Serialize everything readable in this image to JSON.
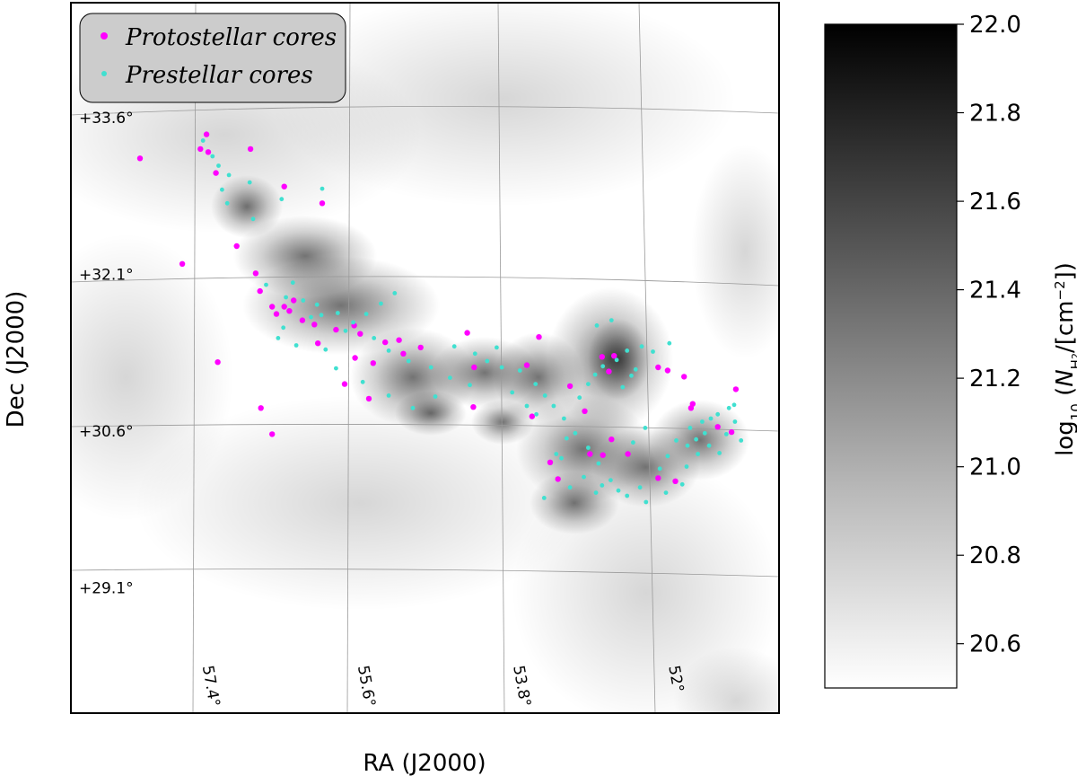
{
  "chart_data": {
    "type": "scatter",
    "title": "",
    "xlabel": "RA (J2000)",
    "ylabel": "Dec (J2000)",
    "x_unit": "deg",
    "y_unit": "deg",
    "xlim": [
      50.6,
      58.8
    ],
    "ylim": [
      27.9,
      34.7
    ],
    "ra_ticks": [
      57.4,
      55.6,
      53.8,
      52
    ],
    "ra_tick_labels": [
      "57.4°",
      "55.6°",
      "53.8°",
      "52°"
    ],
    "dec_ticks": [
      33.6,
      32.1,
      30.6,
      29.1
    ],
    "dec_tick_labels": [
      "+33.6°",
      "+32.1°",
      "+30.6°",
      "+29.1°"
    ],
    "grid": true,
    "legend_position": "top-left",
    "background": "log10 N(H2) column density map, grayscale",
    "colorbar": {
      "label": "log10 (N_H2/[cm^-2])",
      "label_base": "log",
      "label_sub": "10",
      "label_open": " (",
      "label_N": "N",
      "label_H": "H",
      "label_2": "2",
      "label_mid": "/[cm",
      "label_exp": "−2",
      "label_close": "])",
      "min": 20.5,
      "max": 22.0,
      "ticks": [
        "22.0",
        "21.8",
        "21.6",
        "21.4",
        "21.2",
        "21.0",
        "20.8",
        "20.6"
      ],
      "tick_values": [
        22.0,
        21.8,
        21.6,
        21.4,
        21.2,
        21.0,
        20.8,
        20.6
      ],
      "colormap": "gray_r"
    },
    "series": [
      {
        "name": "Protostellar cores",
        "color": "#ff00ff",
        "points": [
          [
            58.0,
            33.21
          ],
          [
            57.3,
            33.3
          ],
          [
            57.23,
            33.44
          ],
          [
            57.21,
            33.27
          ],
          [
            57.12,
            33.07
          ],
          [
            56.72,
            33.3
          ],
          [
            56.33,
            32.94
          ],
          [
            55.89,
            32.78
          ],
          [
            57.51,
            32.2
          ],
          [
            56.88,
            32.37
          ],
          [
            56.66,
            32.11
          ],
          [
            56.61,
            31.94
          ],
          [
            56.47,
            31.79
          ],
          [
            56.42,
            31.72
          ],
          [
            56.33,
            31.79
          ],
          [
            56.27,
            31.75
          ],
          [
            56.22,
            31.85
          ],
          [
            56.12,
            31.66
          ],
          [
            55.98,
            31.62
          ],
          [
            55.73,
            31.57
          ],
          [
            55.52,
            31.61
          ],
          [
            55.45,
            31.53
          ],
          [
            55.0,
            31.47
          ],
          [
            55.16,
            31.45
          ],
          [
            54.75,
            31.4
          ],
          [
            55.94,
            31.44
          ],
          [
            55.51,
            31.3
          ],
          [
            55.3,
            31.25
          ],
          [
            57.1,
            31.26
          ],
          [
            55.35,
            30.91
          ],
          [
            55.63,
            31.05
          ],
          [
            56.6,
            30.82
          ],
          [
            56.47,
            30.57
          ],
          [
            54.95,
            31.34
          ],
          [
            54.13,
            31.21
          ],
          [
            54.14,
            30.83
          ],
          [
            53.38,
            31.5
          ],
          [
            53.02,
            31.03
          ],
          [
            52.85,
            30.79
          ],
          [
            52.54,
            30.52
          ],
          [
            52.64,
            30.37
          ],
          [
            52.35,
            30.38
          ],
          [
            52.0,
            30.15
          ],
          [
            51.6,
            30.86
          ],
          [
            51.31,
            30.64
          ],
          [
            51.15,
            30.59
          ],
          [
            51.1,
            31.0
          ],
          [
            53.46,
            30.74
          ],
          [
            52.79,
            30.38
          ],
          [
            53.25,
            30.3
          ],
          [
            53.16,
            30.14
          ],
          [
            51.7,
            31.12
          ],
          [
            51.62,
            30.82
          ],
          [
            51.8,
            30.12
          ],
          [
            52.57,
            31.17
          ],
          [
            52.65,
            31.31
          ],
          [
            52.51,
            31.32
          ],
          [
            52.0,
            31.21
          ],
          [
            51.89,
            31.18
          ],
          [
            54.21,
            31.54
          ],
          [
            53.52,
            31.23
          ]
        ]
      },
      {
        "name": "Prestellar cores",
        "color": "#40e0d0",
        "points": [
          [
            57.27,
            33.38
          ],
          [
            57.16,
            33.23
          ],
          [
            57.09,
            33.14
          ],
          [
            56.97,
            33.05
          ],
          [
            56.73,
            32.98
          ],
          [
            56.36,
            32.82
          ],
          [
            55.89,
            32.92
          ],
          [
            56.54,
            32.0
          ],
          [
            56.31,
            31.88
          ],
          [
            56.11,
            31.85
          ],
          [
            55.95,
            31.81
          ],
          [
            55.71,
            31.73
          ],
          [
            55.53,
            31.64
          ],
          [
            55.38,
            31.72
          ],
          [
            55.21,
            31.82
          ],
          [
            55.05,
            31.92
          ],
          [
            56.4,
            31.49
          ],
          [
            56.19,
            31.42
          ],
          [
            55.85,
            31.38
          ],
          [
            55.62,
            31.56
          ],
          [
            55.29,
            31.49
          ],
          [
            55.12,
            31.37
          ],
          [
            54.89,
            31.27
          ],
          [
            54.63,
            31.21
          ],
          [
            54.41,
            31.11
          ],
          [
            54.18,
            31.04
          ],
          [
            53.98,
            31.27
          ],
          [
            53.81,
            31.21
          ],
          [
            53.6,
            31.18
          ],
          [
            53.42,
            31.05
          ],
          [
            53.31,
            30.94
          ],
          [
            53.21,
            30.84
          ],
          [
            53.09,
            30.72
          ],
          [
            52.96,
            30.58
          ],
          [
            52.81,
            30.44
          ],
          [
            52.69,
            30.29
          ],
          [
            52.55,
            30.13
          ],
          [
            52.46,
            30.03
          ],
          [
            52.21,
            30.06
          ],
          [
            51.98,
            30.24
          ],
          [
            51.89,
            30.36
          ],
          [
            51.79,
            30.51
          ],
          [
            51.63,
            30.63
          ],
          [
            51.49,
            30.69
          ],
          [
            51.39,
            30.72
          ],
          [
            51.31,
            30.76
          ],
          [
            51.18,
            30.82
          ],
          [
            51.11,
            30.69
          ],
          [
            51.04,
            30.51
          ],
          [
            51.41,
            30.46
          ],
          [
            51.54,
            30.38
          ],
          [
            51.67,
            30.26
          ],
          [
            51.72,
            30.09
          ],
          [
            51.91,
            30.01
          ],
          [
            52.14,
            29.92
          ],
          [
            52.36,
            29.98
          ],
          [
            52.72,
            30.01
          ],
          [
            53.02,
            30.06
          ],
          [
            53.32,
            29.96
          ],
          [
            53.18,
            30.38
          ],
          [
            53.06,
            30.53
          ],
          [
            52.91,
            30.92
          ],
          [
            52.81,
            31.05
          ],
          [
            52.73,
            31.14
          ],
          [
            52.64,
            31.22
          ],
          [
            52.48,
            31.28
          ],
          [
            52.36,
            31.37
          ],
          [
            52.19,
            31.41
          ],
          [
            52.06,
            31.36
          ],
          [
            51.87,
            31.44
          ],
          [
            52.71,
            31.61
          ],
          [
            52.54,
            31.66
          ],
          [
            54.12,
            31.34
          ],
          [
            54.36,
            31.41
          ],
          [
            53.87,
            31.4
          ],
          [
            53.69,
            30.97
          ],
          [
            53.52,
            30.84
          ],
          [
            53.41,
            30.76
          ],
          [
            52.86,
            30.16
          ],
          [
            52.65,
            30.08
          ],
          [
            51.56,
            30.52
          ],
          [
            51.29,
            30.39
          ],
          [
            51.21,
            30.57
          ],
          [
            51.12,
            30.85
          ],
          [
            55.73,
            31.2
          ],
          [
            55.42,
            31.07
          ],
          [
            55.12,
            30.94
          ],
          [
            54.84,
            30.82
          ],
          [
            54.58,
            30.93
          ],
          [
            55.9,
            31.71
          ],
          [
            56.02,
            31.69
          ],
          [
            56.34,
            31.59
          ],
          [
            56.69,
            32.63
          ],
          [
            56.99,
            32.78
          ],
          [
            57.05,
            32.91
          ],
          [
            56.23,
            32.02
          ],
          [
            53.12,
            30.34
          ],
          [
            52.29,
            30.49
          ],
          [
            52.15,
            30.63
          ],
          [
            52.41,
            31.02
          ],
          [
            52.31,
            31.13
          ],
          [
            52.26,
            31.19
          ],
          [
            51.66,
            30.46
          ],
          [
            51.46,
            30.58
          ]
        ]
      }
    ]
  }
}
